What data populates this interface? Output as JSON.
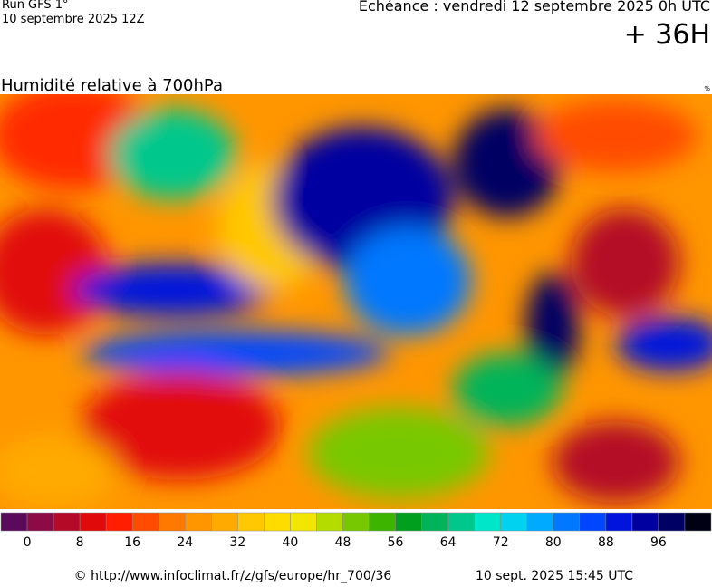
{
  "header": {
    "run": "Run GFS 1°",
    "run_date": "10 septembre 2025 12Z",
    "valid": "Echéance : vendredi 12 septembre 2025 0h UTC",
    "lead": "+ 36H"
  },
  "map": {
    "title": "Humidité relative à 700hPa",
    "unit": "%"
  },
  "colorbar": {
    "colors": [
      "#5a0a5a",
      "#8c0a46",
      "#b40a28",
      "#e10a0a",
      "#ff1e00",
      "#ff4b00",
      "#ff7800",
      "#ff9600",
      "#ffaa00",
      "#ffc800",
      "#ffdc00",
      "#f0e600",
      "#b4dc00",
      "#78c800",
      "#3cb400",
      "#00a01e",
      "#00b45a",
      "#00c88c",
      "#00e6c8",
      "#00d2f0",
      "#00aaff",
      "#0078ff",
      "#0046ff",
      "#0014dc",
      "#0000a0",
      "#000064",
      "#000014"
    ],
    "ticks": [
      0,
      8,
      16,
      24,
      32,
      40,
      48,
      56,
      64,
      72,
      80,
      88,
      96
    ]
  },
  "footer": {
    "source": "© http://www.infoclimat.fr/z/gfs/europe/hr_700/36",
    "timestamp": "10 sept. 2025 15:45 UTC"
  }
}
